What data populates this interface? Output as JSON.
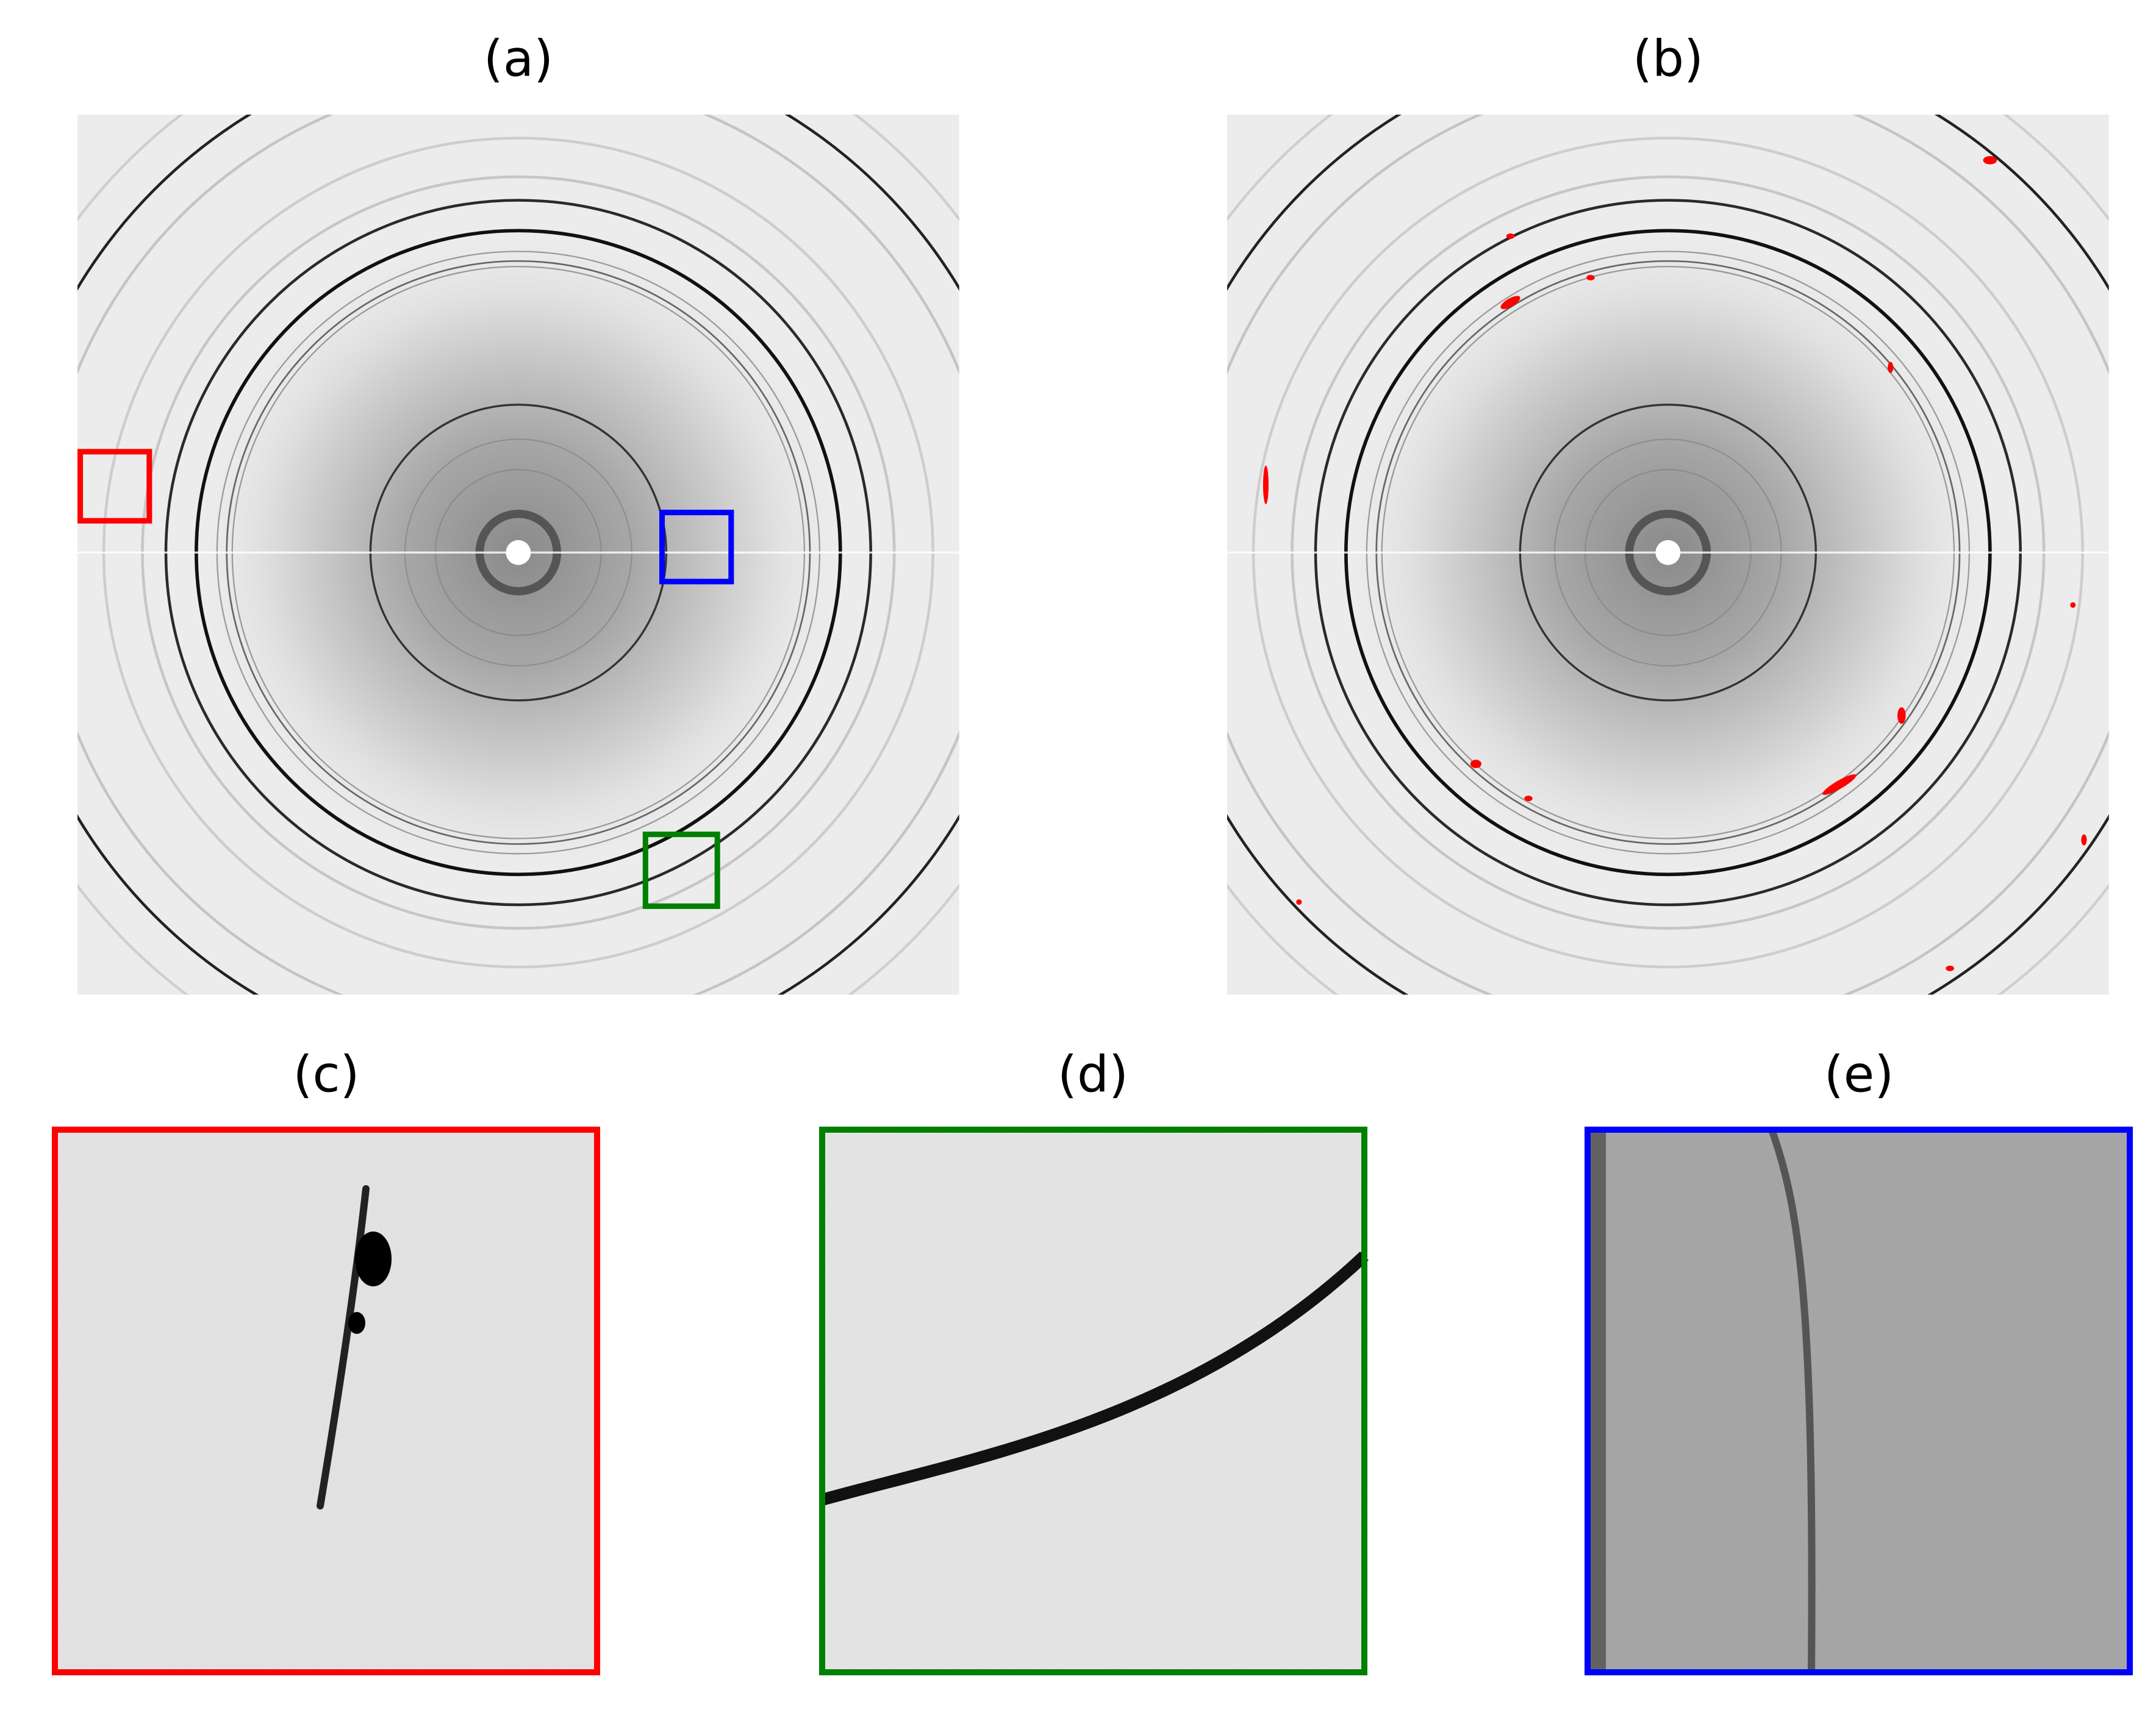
{
  "panels": [
    {
      "label": "(a)"
    },
    {
      "label": "(b)"
    },
    {
      "label": "(c)"
    },
    {
      "label": "(d)"
    },
    {
      "label": "(e)"
    }
  ]
}
